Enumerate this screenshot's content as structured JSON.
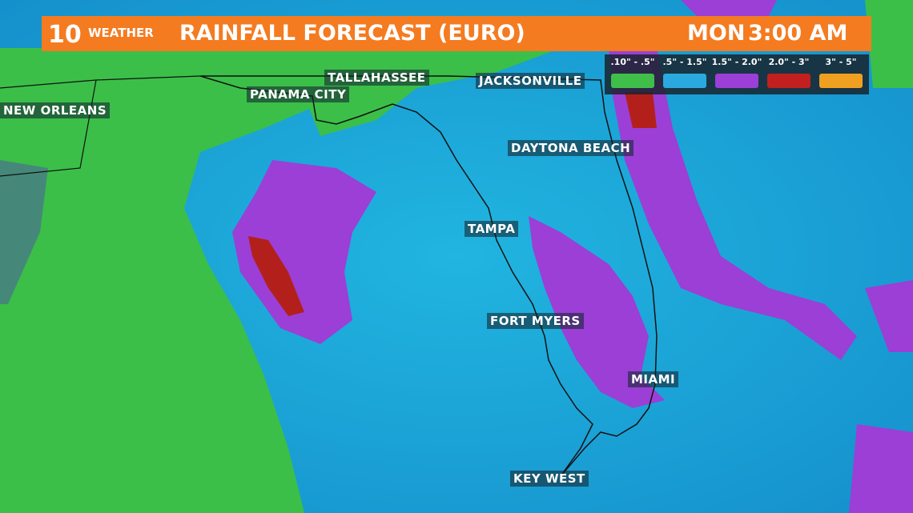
{
  "header": {
    "logo_number": "10",
    "logo_word": "WEATHER",
    "title": "RAINFALL FORECAST (EURO)",
    "day": "MON",
    "time": "3:00 AM"
  },
  "legend": [
    {
      "label": ".10\" - .5\"",
      "color": "#3fbf4a"
    },
    {
      "label": ".5\" - 1.5\"",
      "color": "#2aa9e0"
    },
    {
      "label": "1.5\" - 2.0\"",
      "color": "#9b3fd6"
    },
    {
      "label": "2.0\" - 3\"",
      "color": "#c21f1f"
    },
    {
      "label": "3\" - 5\"",
      "color": "#f0a020"
    }
  ],
  "cities": [
    {
      "label": "NEW ORLEANS"
    },
    {
      "label": "PANAMA CITY"
    },
    {
      "label": "TALLAHASSEE"
    },
    {
      "label": "JACKSONVILLE"
    },
    {
      "label": "DAYTONA BEACH"
    },
    {
      "label": "TAMPA"
    },
    {
      "label": "FORT MYERS"
    },
    {
      "label": "MIAMI"
    },
    {
      "label": "KEY WEST"
    }
  ]
}
